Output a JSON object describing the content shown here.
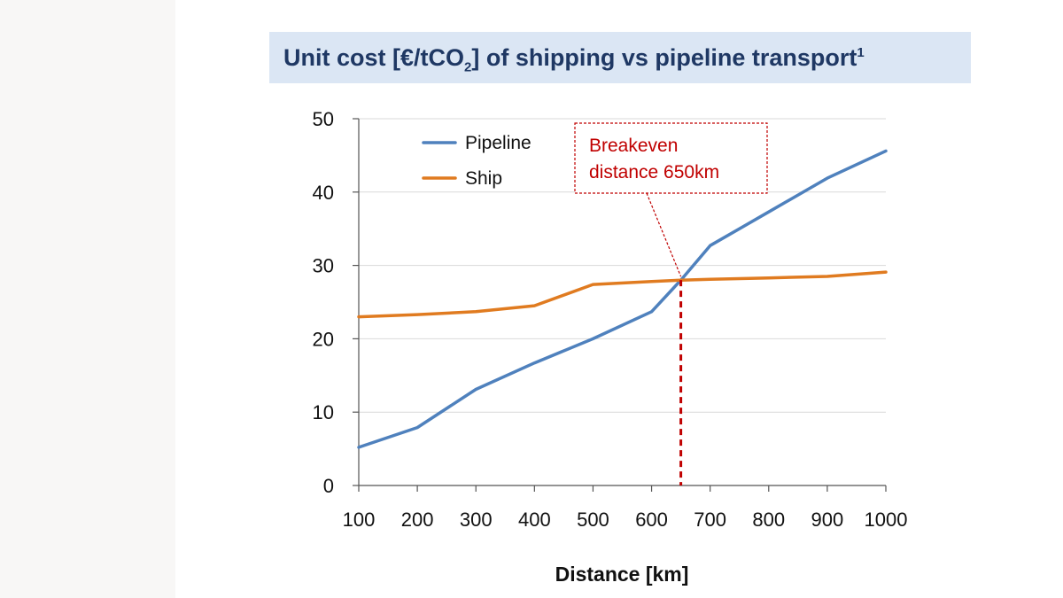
{
  "colors": {
    "pipeline": "#4f81bd",
    "ship": "#e07b20",
    "annotation": "#c00000",
    "title_band": "#dbe6f4",
    "title_text": "#1f3864"
  },
  "chart_data": {
    "type": "line",
    "title": {
      "main": "Unit cost [€/tCO",
      "sub": "2",
      "rest": "] of shipping vs pipeline transport",
      "sup": "1"
    },
    "xlabel": "Distance [km]",
    "ylabel": "",
    "x": [
      100,
      200,
      300,
      400,
      500,
      600,
      700,
      800,
      900,
      1000
    ],
    "x_ticks": [
      "100",
      "200",
      "300",
      "400",
      "500",
      "600",
      "700",
      "800",
      "900",
      "1000"
    ],
    "y_ticks": [
      "0",
      "10",
      "20",
      "30",
      "40",
      "50"
    ],
    "ylim": [
      0,
      50
    ],
    "xlim": [
      100,
      1000
    ],
    "grid": "horizontal",
    "legend": "top-left",
    "series": [
      {
        "name": "Pipeline",
        "x": [
          100,
          200,
          300,
          400,
          500,
          600,
          650,
          700,
          800,
          900,
          1000
        ],
        "values": [
          5.2,
          7.9,
          13.1,
          16.7,
          20.0,
          23.7,
          28.0,
          32.7,
          37.3,
          41.9,
          45.6
        ]
      },
      {
        "name": "Ship",
        "x": [
          100,
          200,
          300,
          400,
          500,
          600,
          650,
          700,
          800,
          900,
          1000
        ],
        "values": [
          23.0,
          23.3,
          23.7,
          24.5,
          27.4,
          27.8,
          28.0,
          28.1,
          28.3,
          28.5,
          29.1
        ]
      }
    ],
    "annotation": {
      "line1": "Breakeven",
      "line2": "distance 650km",
      "x": 650,
      "y": 28
    }
  }
}
